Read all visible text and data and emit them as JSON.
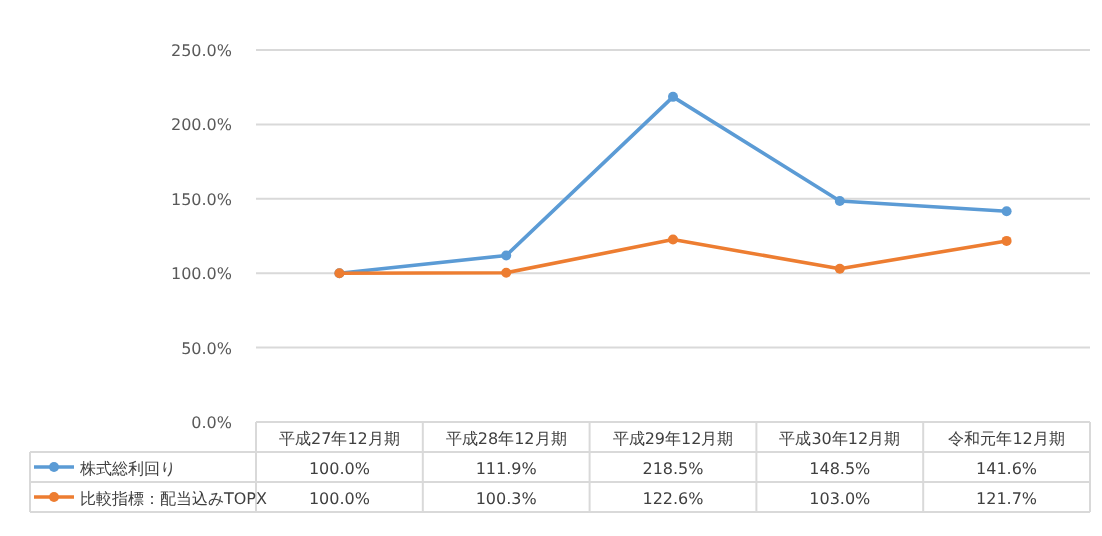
{
  "chart_data": {
    "type": "line",
    "categories": [
      "平成27年12月期",
      "平成28年12月期",
      "平成29年12月期",
      "平成30年12月期",
      "令和元年12月期"
    ],
    "series": [
      {
        "name": "株式総利回り",
        "color": "#5b9bd5",
        "values": [
          100.0,
          111.9,
          218.5,
          148.5,
          141.6
        ],
        "value_labels": [
          "100.0%",
          "111.9%",
          "218.5%",
          "148.5%",
          "141.6%"
        ]
      },
      {
        "name": "比較指標：配当込みTOPX",
        "color": "#ed7d31",
        "values": [
          100.0,
          100.3,
          122.6,
          103.0,
          121.7
        ],
        "value_labels": [
          "100.0%",
          "100.3%",
          "122.6%",
          "103.0%",
          "121.7%"
        ]
      }
    ],
    "ylim": [
      0,
      250
    ],
    "yticks": [
      {
        "value": 0,
        "label": "0.0%"
      },
      {
        "value": 50,
        "label": "50.0%"
      },
      {
        "value": 100,
        "label": "100.0%"
      },
      {
        "value": 150,
        "label": "150.0%"
      },
      {
        "value": 200,
        "label": "200.0%"
      },
      {
        "value": 250,
        "label": "250.0%"
      }
    ],
    "grid": "y",
    "legend": "bottom",
    "marker": "circle",
    "line_style": "solid"
  }
}
